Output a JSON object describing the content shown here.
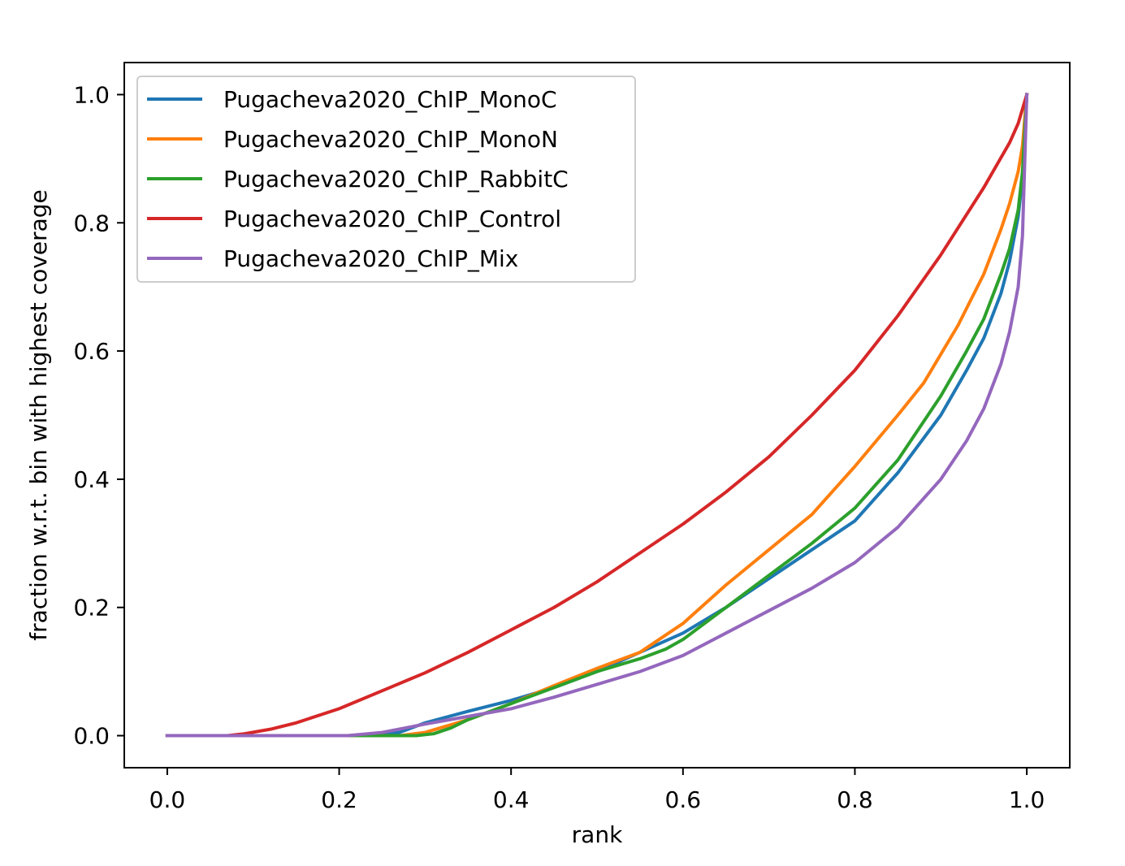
{
  "chart_data": {
    "type": "line",
    "title": "",
    "xlabel": "rank",
    "ylabel": "fraction w.r.t. bin with highest coverage",
    "xlim": [
      -0.05,
      1.05
    ],
    "ylim": [
      -0.05,
      1.05
    ],
    "xticks": [
      0.0,
      0.2,
      0.4,
      0.6,
      0.8,
      1.0
    ],
    "xtick_labels": [
      "0.0",
      "0.2",
      "0.4",
      "0.6",
      "0.8",
      "1.0"
    ],
    "yticks": [
      0.0,
      0.2,
      0.4,
      0.6,
      0.8,
      1.0
    ],
    "ytick_labels": [
      "0.0",
      "0.2",
      "0.4",
      "0.6",
      "0.8",
      "1.0"
    ],
    "grid": false,
    "legend_position": "upper-left",
    "series": [
      {
        "name": "Pugacheva2020_ChIP_MonoC",
        "color": "#1f77b4",
        "x": [
          0.0,
          0.23,
          0.27,
          0.3,
          0.35,
          0.4,
          0.45,
          0.5,
          0.55,
          0.6,
          0.65,
          0.7,
          0.75,
          0.8,
          0.85,
          0.9,
          0.93,
          0.95,
          0.97,
          0.98,
          0.99,
          0.995,
          1.0
        ],
        "y": [
          0.0,
          0.0,
          0.005,
          0.02,
          0.038,
          0.055,
          0.075,
          0.1,
          0.13,
          0.16,
          0.2,
          0.245,
          0.29,
          0.335,
          0.41,
          0.5,
          0.57,
          0.62,
          0.69,
          0.74,
          0.81,
          0.87,
          1.0
        ]
      },
      {
        "name": "Pugacheva2020_ChIP_MonoN",
        "color": "#ff7f0e",
        "x": [
          0.0,
          0.27,
          0.3,
          0.35,
          0.4,
          0.45,
          0.5,
          0.55,
          0.6,
          0.65,
          0.7,
          0.75,
          0.8,
          0.85,
          0.88,
          0.92,
          0.95,
          0.97,
          0.98,
          0.99,
          0.995,
          1.0
        ],
        "y": [
          0.0,
          0.0,
          0.005,
          0.025,
          0.05,
          0.078,
          0.105,
          0.13,
          0.175,
          0.235,
          0.29,
          0.345,
          0.42,
          0.5,
          0.55,
          0.64,
          0.72,
          0.79,
          0.83,
          0.88,
          0.92,
          1.0
        ]
      },
      {
        "name": "Pugacheva2020_ChIP_RabbitC",
        "color": "#2ca02c",
        "x": [
          0.0,
          0.29,
          0.31,
          0.33,
          0.35,
          0.4,
          0.45,
          0.5,
          0.55,
          0.58,
          0.6,
          0.65,
          0.7,
          0.75,
          0.8,
          0.85,
          0.9,
          0.93,
          0.95,
          0.97,
          0.98,
          0.99,
          0.995,
          1.0
        ],
        "y": [
          0.0,
          0.0,
          0.003,
          0.012,
          0.025,
          0.05,
          0.075,
          0.1,
          0.12,
          0.135,
          0.15,
          0.2,
          0.25,
          0.3,
          0.355,
          0.43,
          0.53,
          0.6,
          0.65,
          0.72,
          0.76,
          0.82,
          0.88,
          1.0
        ]
      },
      {
        "name": "Pugacheva2020_ChIP_Control",
        "color": "#d62728",
        "x": [
          0.0,
          0.07,
          0.09,
          0.12,
          0.15,
          0.2,
          0.25,
          0.3,
          0.35,
          0.4,
          0.45,
          0.5,
          0.55,
          0.6,
          0.65,
          0.7,
          0.75,
          0.8,
          0.85,
          0.9,
          0.95,
          0.98,
          0.99,
          1.0
        ],
        "y": [
          0.0,
          0.0,
          0.003,
          0.01,
          0.02,
          0.042,
          0.07,
          0.098,
          0.13,
          0.165,
          0.2,
          0.24,
          0.285,
          0.33,
          0.38,
          0.435,
          0.5,
          0.57,
          0.655,
          0.75,
          0.855,
          0.925,
          0.955,
          1.0
        ]
      },
      {
        "name": "Pugacheva2020_ChIP_Mix",
        "color": "#9467bd",
        "x": [
          0.0,
          0.21,
          0.25,
          0.3,
          0.35,
          0.4,
          0.45,
          0.5,
          0.55,
          0.6,
          0.65,
          0.7,
          0.75,
          0.8,
          0.85,
          0.9,
          0.93,
          0.95,
          0.97,
          0.98,
          0.99,
          0.995,
          1.0
        ],
        "y": [
          0.0,
          0.0,
          0.005,
          0.018,
          0.03,
          0.042,
          0.06,
          0.08,
          0.1,
          0.125,
          0.16,
          0.195,
          0.23,
          0.27,
          0.325,
          0.4,
          0.46,
          0.51,
          0.58,
          0.63,
          0.7,
          0.78,
          1.0
        ]
      }
    ]
  }
}
